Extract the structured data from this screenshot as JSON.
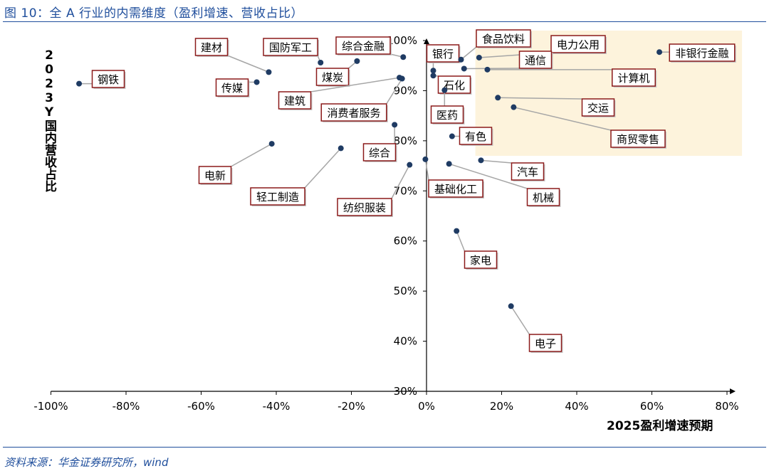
{
  "title": "图 10：全 A 行业的内需维度（盈利增速、营收占比）",
  "footer": "资料来源：华金证券研究所，wind",
  "chart_data": {
    "type": "scatter",
    "xlabel": "2025盈利增速预期",
    "ylabel": "2023Y国内营收占比",
    "xlim": [
      -1.0,
      0.8
    ],
    "ylim": [
      0.3,
      1.0
    ],
    "xticks": [
      -1.0,
      -0.8,
      -0.6,
      -0.4,
      -0.2,
      0.0,
      0.2,
      0.4,
      0.6,
      0.8
    ],
    "xtick_labels": [
      "-100%",
      "-80%",
      "-60%",
      "-40%",
      "-20%",
      "0%",
      "20%",
      "40%",
      "60%",
      "80%"
    ],
    "yticks": [
      0.3,
      0.4,
      0.5,
      0.6,
      0.7,
      0.8,
      0.9,
      1.0
    ],
    "ytick_labels": [
      "30%",
      "40%",
      "50%",
      "60%",
      "70%",
      "80%",
      "90%",
      "100%"
    ],
    "highlight_region": {
      "x": [
        0.13,
        0.84
      ],
      "y": [
        0.77,
        1.0
      ],
      "color": "#fdf3dc"
    },
    "colors": {
      "point": "#1f3b63",
      "box_border": "#8b1a1a",
      "leader": "#a6a6a6",
      "accent": "#1f4e9c"
    },
    "points": [
      {
        "name": "钢铁",
        "x": -0.925,
        "y": 0.914
      },
      {
        "name": "建材",
        "x": -0.42,
        "y": 0.937
      },
      {
        "name": "传媒",
        "x": -0.452,
        "y": 0.917
      },
      {
        "name": "国防军工",
        "x": -0.282,
        "y": 0.956
      },
      {
        "name": "综合金融",
        "x": -0.062,
        "y": 0.967
      },
      {
        "name": "煤炭",
        "x": -0.185,
        "y": 0.959
      },
      {
        "name": "建筑",
        "x": -0.072,
        "y": 0.926
      },
      {
        "name": "消费者服务",
        "x": -0.065,
        "y": 0.924
      },
      {
        "name": "综合",
        "x": -0.085,
        "y": 0.832
      },
      {
        "name": "电新",
        "x": -0.412,
        "y": 0.794
      },
      {
        "name": "轻工制造",
        "x": -0.228,
        "y": 0.785
      },
      {
        "name": "纺织服装",
        "x": -0.045,
        "y": 0.752
      },
      {
        "name": "基础化工",
        "x": -0.003,
        "y": 0.763
      },
      {
        "name": "银行",
        "x": 0.018,
        "y": 0.94
      },
      {
        "name": "石化",
        "x": 0.018,
        "y": 0.93
      },
      {
        "name": "医药",
        "x": 0.048,
        "y": 0.901
      },
      {
        "name": "有色",
        "x": 0.068,
        "y": 0.809
      },
      {
        "name": "食品饮料",
        "x": 0.092,
        "y": 0.962
      },
      {
        "name": "电力公用",
        "x": 0.14,
        "y": 0.966
      },
      {
        "name": "通信",
        "x": 0.1,
        "y": 0.944
      },
      {
        "name": "计算机",
        "x": 0.162,
        "y": 0.942
      },
      {
        "name": "非银行金融",
        "x": 0.62,
        "y": 0.977
      },
      {
        "name": "交运",
        "x": 0.19,
        "y": 0.886
      },
      {
        "name": "商贸零售",
        "x": 0.232,
        "y": 0.867
      },
      {
        "name": "汽车",
        "x": 0.145,
        "y": 0.761
      },
      {
        "name": "机械",
        "x": 0.06,
        "y": 0.754
      },
      {
        "name": "家电",
        "x": 0.08,
        "y": 0.62
      },
      {
        "name": "电子",
        "x": 0.225,
        "y": 0.47
      }
    ]
  }
}
